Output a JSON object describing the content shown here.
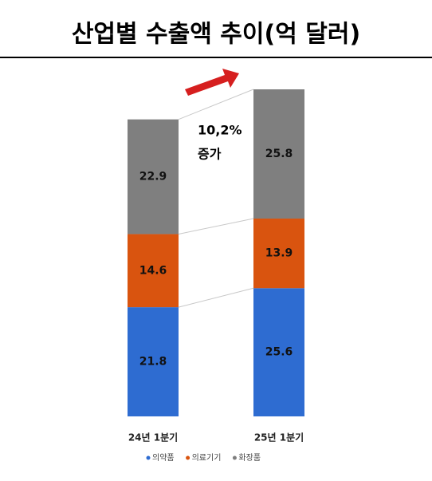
{
  "chart_data": {
    "type": "bar",
    "stacked": true,
    "title": "산업별 수출액 추이(억 달러)",
    "categories": [
      "24년 1분기",
      "25년 1분기"
    ],
    "series": [
      {
        "name": "의약품",
        "color": "#2e6cd1",
        "values": [
          21.8,
          25.6
        ]
      },
      {
        "name": "의료기기",
        "color": "#d9540f",
        "values": [
          14.6,
          13.9
        ]
      },
      {
        "name": "화장품",
        "color": "#7f7f7f",
        "values": [
          22.9,
          25.8
        ]
      }
    ],
    "annotation": [
      "10,2%",
      "증가"
    ]
  }
}
